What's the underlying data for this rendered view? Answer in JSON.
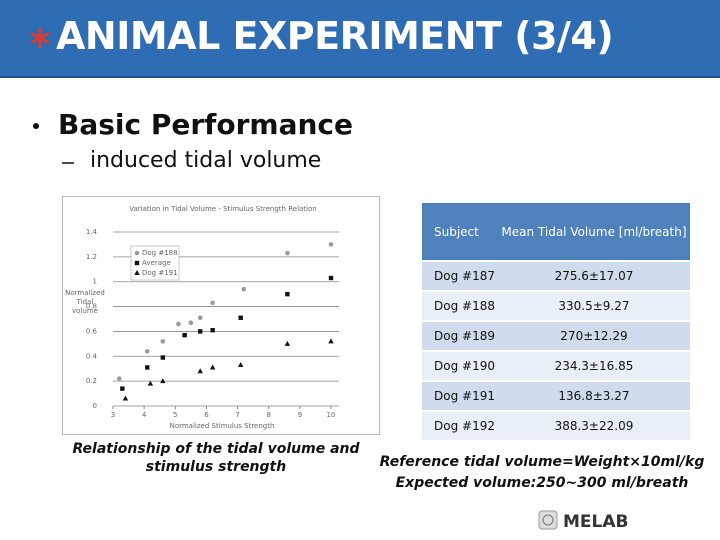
{
  "header": {
    "title": "ANIMAL EXPERIMENT (3/4)"
  },
  "bullets": {
    "main": "Basic Performance",
    "sub": "induced tidal volume"
  },
  "chart_data": {
    "type": "scatter",
    "title": "Variation in Tidal Volume - Stimulus Strength Relation",
    "x_label": "Normalized Stimulus Strength",
    "y_label": "Normalized Tidal volume",
    "xlim": [
      3,
      10
    ],
    "xticks": [
      3,
      4,
      5,
      6,
      7,
      8,
      9,
      10
    ],
    "ylim": [
      0,
      1.4
    ],
    "yticks": [
      0,
      0.2,
      0.4,
      0.6,
      0.8,
      1,
      1.2,
      1.4
    ],
    "grid": true,
    "legend": "upper left",
    "series": [
      {
        "name": "Dog #188",
        "color": "#9a9a9a",
        "marker": "circle",
        "x": [
          3.2,
          4.1,
          4.6,
          5.1,
          5.5,
          5.8,
          6.2,
          7.2,
          8.6,
          10
        ],
        "values": [
          0.22,
          0.44,
          0.52,
          0.66,
          0.67,
          0.71,
          0.83,
          0.94,
          1.23,
          1.3
        ]
      },
      {
        "name": "Average",
        "color": "#111111",
        "marker": "square",
        "x": [
          3.3,
          4.1,
          4.6,
          5.3,
          5.8,
          6.2,
          7.1,
          8.6,
          10
        ],
        "values": [
          0.14,
          0.31,
          0.39,
          0.57,
          0.6,
          0.61,
          0.71,
          0.9,
          1.03
        ]
      },
      {
        "name": "Dog #191",
        "color": "#111111",
        "marker": "triangle",
        "x": [
          3.4,
          4.2,
          4.6,
          5.8,
          6.2,
          7.1,
          8.6,
          10
        ],
        "values": [
          0.06,
          0.18,
          0.2,
          0.28,
          0.31,
          0.33,
          0.5,
          0.52
        ]
      }
    ]
  },
  "caption": "Relationship of the tidal volume and stimulus strength",
  "table": {
    "header": [
      "Subject",
      "Mean Tidal Volume [ml/breath]"
    ],
    "rows": [
      [
        "Dog #187",
        "275.6±17.07"
      ],
      [
        "Dog #188",
        "330.5±9.27"
      ],
      [
        "Dog #189",
        "270±12.29"
      ],
      [
        "Dog #190",
        "234.3±16.85"
      ],
      [
        "Dog #191",
        "136.8±3.27"
      ],
      [
        "Dog #192",
        "388.3±22.09"
      ]
    ]
  },
  "notes": [
    "Reference tidal volume=Weight×10ml/kg",
    "Expected volume:250~300 ml/breath"
  ],
  "footer": {
    "logo": "MELAB"
  }
}
